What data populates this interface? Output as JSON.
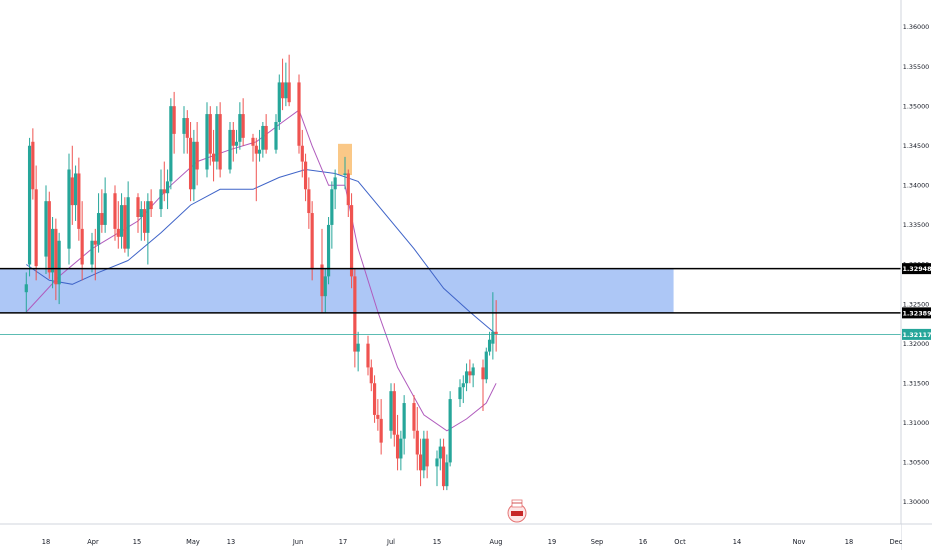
{
  "chart_data": {
    "type": "candlestick",
    "colors": {
      "up": "#26a69a",
      "down": "#ef5350",
      "ma_fast": "#b05bbd",
      "ma_slow": "#3f64c8",
      "zone": "#a9c4f5",
      "highlight": "#f9c27a",
      "level_line": "#000000",
      "last_price": "#26a69a",
      "axis_text": "#131722",
      "grid": "#e0e3eb"
    },
    "y_axis": {
      "ticks": [
        "1.36000",
        "1.35500",
        "1.35000",
        "1.34500",
        "1.34000",
        "1.33500",
        "1.33000",
        "1.32500",
        "1.32000",
        "1.31500",
        "1.31000",
        "1.30500",
        "1.30000"
      ],
      "range": [
        1.2965,
        1.3655
      ]
    },
    "x_axis": {
      "ticks": [
        "18",
        "Apr",
        "15",
        "May",
        "13",
        "Jun",
        "17",
        "Jul",
        "15",
        "Aug",
        "19",
        "Sep",
        "16",
        "Oct",
        "14",
        "Nov",
        "18",
        "Dec"
      ]
    },
    "price_labels": {
      "resistance": "1.32948",
      "support": "1.32389",
      "last": "1.32117"
    },
    "levels": {
      "resistance": 1.32948,
      "support": 1.32389,
      "last": 1.32117,
      "zone": [
        1.32389,
        1.32948
      ],
      "zone_end_date": "Sep 25"
    },
    "highlight": {
      "date": "Jun 17",
      "price_range": [
        1.3413,
        1.3436
      ]
    },
    "candles": [
      {
        "date": "Mar 12",
        "o": 1.3265,
        "h": 1.329,
        "l": 1.324,
        "c": 1.3275
      },
      {
        "date": "Mar 13",
        "o": 1.33,
        "h": 1.346,
        "l": 1.3285,
        "c": 1.345
      },
      {
        "date": "Mar 14",
        "o": 1.3455,
        "h": 1.3472,
        "l": 1.3382,
        "c": 1.3395
      },
      {
        "date": "Mar 15",
        "o": 1.3395,
        "h": 1.3425,
        "l": 1.328,
        "c": 1.3298
      },
      {
        "date": "Mar 18",
        "o": 1.331,
        "h": 1.34,
        "l": 1.3288,
        "c": 1.338
      },
      {
        "date": "Mar 19",
        "o": 1.338,
        "h": 1.3392,
        "l": 1.3282,
        "c": 1.329
      },
      {
        "date": "Mar 20",
        "o": 1.329,
        "h": 1.336,
        "l": 1.327,
        "c": 1.3345
      },
      {
        "date": "Mar 21",
        "o": 1.3345,
        "h": 1.3358,
        "l": 1.3255,
        "c": 1.3275
      },
      {
        "date": "Mar 22",
        "o": 1.3275,
        "h": 1.334,
        "l": 1.325,
        "c": 1.333
      },
      {
        "date": "Mar 25",
        "o": 1.332,
        "h": 1.344,
        "l": 1.33,
        "c": 1.342
      },
      {
        "date": "Mar 26",
        "o": 1.341,
        "h": 1.345,
        "l": 1.335,
        "c": 1.3375
      },
      {
        "date": "Mar 27",
        "o": 1.3375,
        "h": 1.3425,
        "l": 1.3355,
        "c": 1.3415
      },
      {
        "date": "Mar 28",
        "o": 1.3415,
        "h": 1.3435,
        "l": 1.333,
        "c": 1.3345
      },
      {
        "date": "Mar 29",
        "o": 1.3345,
        "h": 1.338,
        "l": 1.328,
        "c": 1.33
      },
      {
        "date": "Apr 1",
        "o": 1.33,
        "h": 1.334,
        "l": 1.329,
        "c": 1.333
      },
      {
        "date": "Apr 2",
        "o": 1.333,
        "h": 1.3345,
        "l": 1.328,
        "c": 1.3325
      },
      {
        "date": "Apr 3",
        "o": 1.3325,
        "h": 1.339,
        "l": 1.3315,
        "c": 1.3365
      },
      {
        "date": "Apr 4",
        "o": 1.3365,
        "h": 1.3395,
        "l": 1.334,
        "c": 1.335
      },
      {
        "date": "Apr 5",
        "o": 1.335,
        "h": 1.341,
        "l": 1.334,
        "c": 1.339
      },
      {
        "date": "Apr 8",
        "o": 1.339,
        "h": 1.34,
        "l": 1.333,
        "c": 1.3345
      },
      {
        "date": "Apr 9",
        "o": 1.3345,
        "h": 1.338,
        "l": 1.332,
        "c": 1.3335
      },
      {
        "date": "Apr 10",
        "o": 1.3335,
        "h": 1.339,
        "l": 1.332,
        "c": 1.3375
      },
      {
        "date": "Apr 11",
        "o": 1.3375,
        "h": 1.3385,
        "l": 1.3315,
        "c": 1.332
      },
      {
        "date": "Apr 12",
        "o": 1.332,
        "h": 1.3405,
        "l": 1.331,
        "c": 1.3385
      },
      {
        "date": "Apr 15",
        "o": 1.3385,
        "h": 1.339,
        "l": 1.334,
        "c": 1.336
      },
      {
        "date": "Apr 16",
        "o": 1.336,
        "h": 1.338,
        "l": 1.333,
        "c": 1.337
      },
      {
        "date": "Apr 17",
        "o": 1.337,
        "h": 1.338,
        "l": 1.333,
        "c": 1.334
      },
      {
        "date": "Apr 18",
        "o": 1.334,
        "h": 1.339,
        "l": 1.33,
        "c": 1.338
      },
      {
        "date": "Apr 19",
        "o": 1.338,
        "h": 1.3395,
        "l": 1.336,
        "c": 1.337
      },
      {
        "date": "Apr 22",
        "o": 1.337,
        "h": 1.342,
        "l": 1.336,
        "c": 1.3395
      },
      {
        "date": "Apr 23",
        "o": 1.3395,
        "h": 1.343,
        "l": 1.338,
        "c": 1.339
      },
      {
        "date": "Apr 24",
        "o": 1.339,
        "h": 1.342,
        "l": 1.337,
        "c": 1.3405
      },
      {
        "date": "Apr 25",
        "o": 1.3405,
        "h": 1.351,
        "l": 1.3395,
        "c": 1.35
      },
      {
        "date": "Apr 26",
        "o": 1.35,
        "h": 1.3518,
        "l": 1.344,
        "c": 1.3465
      },
      {
        "date": "Apr 29",
        "o": 1.3465,
        "h": 1.35,
        "l": 1.344,
        "c": 1.3485
      },
      {
        "date": "Apr 30",
        "o": 1.3485,
        "h": 1.3495,
        "l": 1.344,
        "c": 1.346
      },
      {
        "date": "May 1",
        "o": 1.346,
        "h": 1.348,
        "l": 1.338,
        "c": 1.3395
      },
      {
        "date": "May 2",
        "o": 1.3395,
        "h": 1.347,
        "l": 1.338,
        "c": 1.3455
      },
      {
        "date": "May 3",
        "o": 1.3455,
        "h": 1.348,
        "l": 1.34,
        "c": 1.342
      },
      {
        "date": "May 6",
        "o": 1.342,
        "h": 1.3505,
        "l": 1.341,
        "c": 1.349
      },
      {
        "date": "May 7",
        "o": 1.349,
        "h": 1.35,
        "l": 1.3425,
        "c": 1.344
      },
      {
        "date": "May 8",
        "o": 1.344,
        "h": 1.347,
        "l": 1.3405,
        "c": 1.343
      },
      {
        "date": "May 9",
        "o": 1.343,
        "h": 1.35,
        "l": 1.342,
        "c": 1.349
      },
      {
        "date": "May 10",
        "o": 1.349,
        "h": 1.3505,
        "l": 1.341,
        "c": 1.342
      },
      {
        "date": "May 13",
        "o": 1.342,
        "h": 1.348,
        "l": 1.3415,
        "c": 1.347
      },
      {
        "date": "May 14",
        "o": 1.347,
        "h": 1.348,
        "l": 1.343,
        "c": 1.345
      },
      {
        "date": "May 15",
        "o": 1.345,
        "h": 1.347,
        "l": 1.344,
        "c": 1.3455
      },
      {
        "date": "May 16",
        "o": 1.3455,
        "h": 1.3505,
        "l": 1.3445,
        "c": 1.349
      },
      {
        "date": "May 17",
        "o": 1.349,
        "h": 1.351,
        "l": 1.345,
        "c": 1.346
      },
      {
        "date": "May 20",
        "o": 1.346,
        "h": 1.3465,
        "l": 1.343,
        "c": 1.345
      },
      {
        "date": "May 21",
        "o": 1.345,
        "h": 1.346,
        "l": 1.338,
        "c": 1.344
      },
      {
        "date": "May 22",
        "o": 1.344,
        "h": 1.347,
        "l": 1.343,
        "c": 1.3445
      },
      {
        "date": "May 23",
        "o": 1.3445,
        "h": 1.348,
        "l": 1.3435,
        "c": 1.3475
      },
      {
        "date": "May 24",
        "o": 1.3475,
        "h": 1.349,
        "l": 1.344,
        "c": 1.3445
      },
      {
        "date": "May 27",
        "o": 1.3445,
        "h": 1.349,
        "l": 1.344,
        "c": 1.348
      },
      {
        "date": "May 28",
        "o": 1.348,
        "h": 1.354,
        "l": 1.347,
        "c": 1.353
      },
      {
        "date": "May 29",
        "o": 1.353,
        "h": 1.356,
        "l": 1.3495,
        "c": 1.351
      },
      {
        "date": "May 30",
        "o": 1.351,
        "h": 1.3555,
        "l": 1.35,
        "c": 1.353
      },
      {
        "date": "May 31",
        "o": 1.353,
        "h": 1.3565,
        "l": 1.35,
        "c": 1.3505
      },
      {
        "date": "Jun 3",
        "o": 1.353,
        "h": 1.354,
        "l": 1.344,
        "c": 1.345
      },
      {
        "date": "Jun 4",
        "o": 1.345,
        "h": 1.347,
        "l": 1.341,
        "c": 1.343
      },
      {
        "date": "Jun 5",
        "o": 1.343,
        "h": 1.344,
        "l": 1.338,
        "c": 1.3395
      },
      {
        "date": "Jun 6",
        "o": 1.3395,
        "h": 1.341,
        "l": 1.3345,
        "c": 1.3365
      },
      {
        "date": "Jun 7",
        "o": 1.3365,
        "h": 1.338,
        "l": 1.328,
        "c": 1.3295
      },
      {
        "date": "Jun 10",
        "o": 1.33,
        "h": 1.3345,
        "l": 1.3239,
        "c": 1.326
      },
      {
        "date": "Jun 11",
        "o": 1.326,
        "h": 1.3295,
        "l": 1.3239,
        "c": 1.3285
      },
      {
        "date": "Jun 12",
        "o": 1.3285,
        "h": 1.336,
        "l": 1.3275,
        "c": 1.335
      },
      {
        "date": "Jun 13",
        "o": 1.335,
        "h": 1.3405,
        "l": 1.332,
        "c": 1.3395
      },
      {
        "date": "Jun 14",
        "o": 1.3395,
        "h": 1.342,
        "l": 1.337,
        "c": 1.341
      },
      {
        "date": "Jun 17",
        "o": 1.3413,
        "h": 1.3436,
        "l": 1.3395,
        "c": 1.3415
      },
      {
        "date": "Jun 18",
        "o": 1.3415,
        "h": 1.342,
        "l": 1.336,
        "c": 1.3375
      },
      {
        "date": "Jun 19",
        "o": 1.3375,
        "h": 1.339,
        "l": 1.327,
        "c": 1.3285
      },
      {
        "date": "Jun 20",
        "o": 1.3285,
        "h": 1.3295,
        "l": 1.317,
        "c": 1.319
      },
      {
        "date": "Jun 21",
        "o": 1.319,
        "h": 1.3215,
        "l": 1.3165,
        "c": 1.32
      },
      {
        "date": "Jun 24",
        "o": 1.32,
        "h": 1.321,
        "l": 1.316,
        "c": 1.317
      },
      {
        "date": "Jun 25",
        "o": 1.317,
        "h": 1.318,
        "l": 1.314,
        "c": 1.315
      },
      {
        "date": "Jun 26",
        "o": 1.315,
        "h": 1.316,
        "l": 1.31,
        "c": 1.311
      },
      {
        "date": "Jun 27",
        "o": 1.311,
        "h": 1.313,
        "l": 1.309,
        "c": 1.3105
      },
      {
        "date": "Jun 28",
        "o": 1.3105,
        "h": 1.313,
        "l": 1.306,
        "c": 1.3075
      },
      {
        "date": "Jul 1",
        "o": 1.309,
        "h": 1.315,
        "l": 1.308,
        "c": 1.314
      },
      {
        "date": "Jul 2",
        "o": 1.314,
        "h": 1.315,
        "l": 1.307,
        "c": 1.3085
      },
      {
        "date": "Jul 3",
        "o": 1.3085,
        "h": 1.311,
        "l": 1.304,
        "c": 1.3055
      },
      {
        "date": "Jul 4",
        "o": 1.3055,
        "h": 1.309,
        "l": 1.304,
        "c": 1.308
      },
      {
        "date": "Jul 5",
        "o": 1.308,
        "h": 1.3135,
        "l": 1.306,
        "c": 1.3125
      },
      {
        "date": "Jul 8",
        "o": 1.3125,
        "h": 1.3135,
        "l": 1.308,
        "c": 1.309
      },
      {
        "date": "Jul 9",
        "o": 1.309,
        "h": 1.312,
        "l": 1.304,
        "c": 1.306
      },
      {
        "date": "Jul 10",
        "o": 1.306,
        "h": 1.308,
        "l": 1.302,
        "c": 1.304
      },
      {
        "date": "Jul 11",
        "o": 1.304,
        "h": 1.309,
        "l": 1.303,
        "c": 1.308
      },
      {
        "date": "Jul 12",
        "o": 1.308,
        "h": 1.309,
        "l": 1.303,
        "c": 1.3045
      },
      {
        "date": "Jul 15",
        "o": 1.3045,
        "h": 1.3065,
        "l": 1.302,
        "c": 1.3055
      },
      {
        "date": "Jul 16",
        "o": 1.3055,
        "h": 1.308,
        "l": 1.304,
        "c": 1.307
      },
      {
        "date": "Jul 17",
        "o": 1.307,
        "h": 1.308,
        "l": 1.3015,
        "c": 1.302
      },
      {
        "date": "Jul 18",
        "o": 1.302,
        "h": 1.306,
        "l": 1.3015,
        "c": 1.305
      },
      {
        "date": "Jul 19",
        "o": 1.305,
        "h": 1.314,
        "l": 1.3045,
        "c": 1.313
      },
      {
        "date": "Jul 22",
        "o": 1.313,
        "h": 1.3155,
        "l": 1.312,
        "c": 1.3145
      },
      {
        "date": "Jul 23",
        "o": 1.3145,
        "h": 1.316,
        "l": 1.3125,
        "c": 1.315
      },
      {
        "date": "Jul 24",
        "o": 1.315,
        "h": 1.3175,
        "l": 1.314,
        "c": 1.3165
      },
      {
        "date": "Jul 25",
        "o": 1.3165,
        "h": 1.318,
        "l": 1.315,
        "c": 1.316
      },
      {
        "date": "Jul 26",
        "o": 1.316,
        "h": 1.3175,
        "l": 1.3145,
        "c": 1.317
      },
      {
        "date": "Jul 29",
        "o": 1.317,
        "h": 1.318,
        "l": 1.3115,
        "c": 1.3155
      },
      {
        "date": "Jul 30",
        "o": 1.3155,
        "h": 1.3195,
        "l": 1.315,
        "c": 1.319
      },
      {
        "date": "Jul 31",
        "o": 1.319,
        "h": 1.3215,
        "l": 1.3185,
        "c": 1.3205
      },
      {
        "date": "Aug 1",
        "o": 1.32,
        "h": 1.3265,
        "l": 1.318,
        "c": 1.3215
      },
      {
        "date": "Aug 2",
        "o": 1.3215,
        "h": 1.3255,
        "l": 1.319,
        "c": 1.3212
      }
    ],
    "ma_fast": [
      {
        "date": "Mar 12",
        "v": 1.324
      },
      {
        "date": "Mar 22",
        "v": 1.3285
      },
      {
        "date": "Apr 1",
        "v": 1.332
      },
      {
        "date": "Apr 15",
        "v": 1.3355
      },
      {
        "date": "Apr 25",
        "v": 1.34
      },
      {
        "date": "May 3",
        "v": 1.343
      },
      {
        "date": "May 13",
        "v": 1.3445
      },
      {
        "date": "May 21",
        "v": 1.3455
      },
      {
        "date": "May 29",
        "v": 1.348
      },
      {
        "date": "Jun 3",
        "v": 1.3495
      },
      {
        "date": "Jun 7",
        "v": 1.345
      },
      {
        "date": "Jun 12",
        "v": 1.34
      },
      {
        "date": "Jun 17",
        "v": 1.34
      },
      {
        "date": "Jun 21",
        "v": 1.332
      },
      {
        "date": "Jun 27",
        "v": 1.324
      },
      {
        "date": "Jul 3",
        "v": 1.317
      },
      {
        "date": "Jul 11",
        "v": 1.311
      },
      {
        "date": "Jul 18",
        "v": 1.309
      },
      {
        "date": "Jul 24",
        "v": 1.3105
      },
      {
        "date": "Jul 30",
        "v": 1.3125
      },
      {
        "date": "Aug 2",
        "v": 1.315
      }
    ],
    "ma_slow": [
      {
        "date": "Mar 12",
        "v": 1.33
      },
      {
        "date": "Mar 19",
        "v": 1.328
      },
      {
        "date": "Mar 26",
        "v": 1.3275
      },
      {
        "date": "Apr 3",
        "v": 1.329
      },
      {
        "date": "Apr 12",
        "v": 1.3305
      },
      {
        "date": "Apr 22",
        "v": 1.334
      },
      {
        "date": "May 1",
        "v": 1.3375
      },
      {
        "date": "May 10",
        "v": 1.3395
      },
      {
        "date": "May 20",
        "v": 1.3395
      },
      {
        "date": "May 28",
        "v": 1.341
      },
      {
        "date": "Jun 5",
        "v": 1.342
      },
      {
        "date": "Jun 14",
        "v": 1.3415
      },
      {
        "date": "Jun 21",
        "v": 1.3405
      },
      {
        "date": "Jun 28",
        "v": 1.337
      },
      {
        "date": "Jul 8",
        "v": 1.332
      },
      {
        "date": "Jul 17",
        "v": 1.327
      },
      {
        "date": "Jul 25",
        "v": 1.324
      },
      {
        "date": "Aug 2",
        "v": 1.3212
      }
    ]
  }
}
